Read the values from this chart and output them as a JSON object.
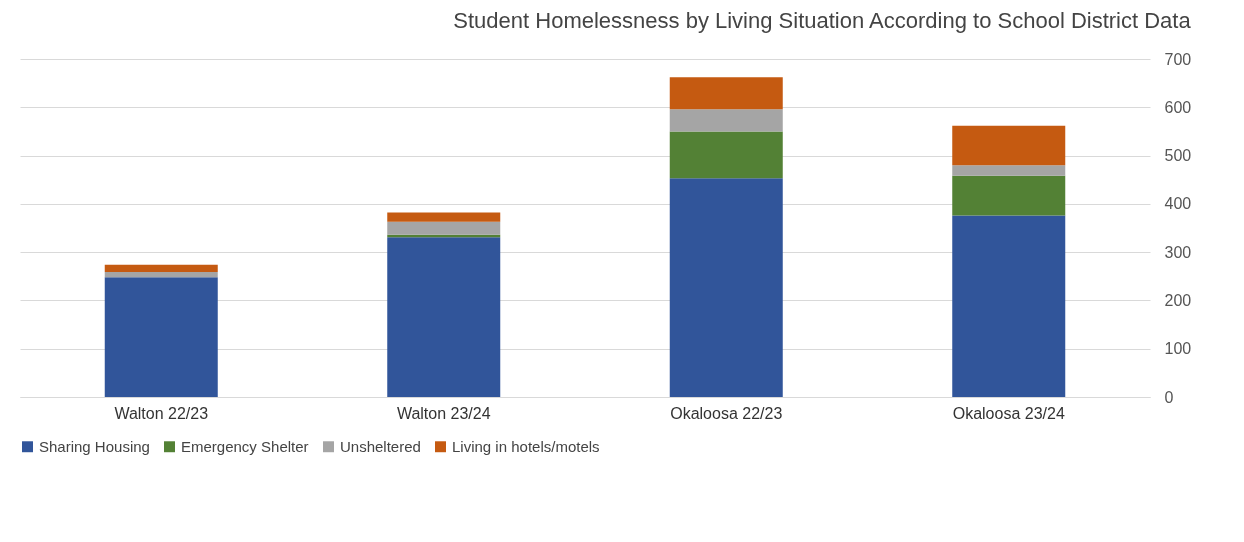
{
  "chart_data": {
    "type": "bar",
    "title": "Student Homelessness by Living Situation According to School District Data",
    "categories": [
      "Walton 22/23",
      "Walton 23/24",
      "Okaloosa 22/23",
      "Okaloosa 23/24"
    ],
    "stacked": true,
    "series": [
      {
        "name": "Sharing Housing",
        "color": "#31559a",
        "values": [
          248,
          331,
          453,
          376
        ]
      },
      {
        "name": "Emergency Shelter",
        "color": "#538135",
        "values": [
          0,
          5,
          97,
          82
        ]
      },
      {
        "name": "Unsheltered",
        "color": "#a5a5a5",
        "values": [
          11,
          27,
          46,
          22
        ]
      },
      {
        "name": "Living in hotels/motels",
        "color": "#c55a11",
        "values": [
          15,
          19,
          66,
          82
        ]
      }
    ],
    "ylim": [
      0,
      700
    ],
    "yticks": [
      0,
      100,
      200,
      300,
      400,
      500,
      600,
      700
    ],
    "grid": "y",
    "legend": "bottom"
  }
}
